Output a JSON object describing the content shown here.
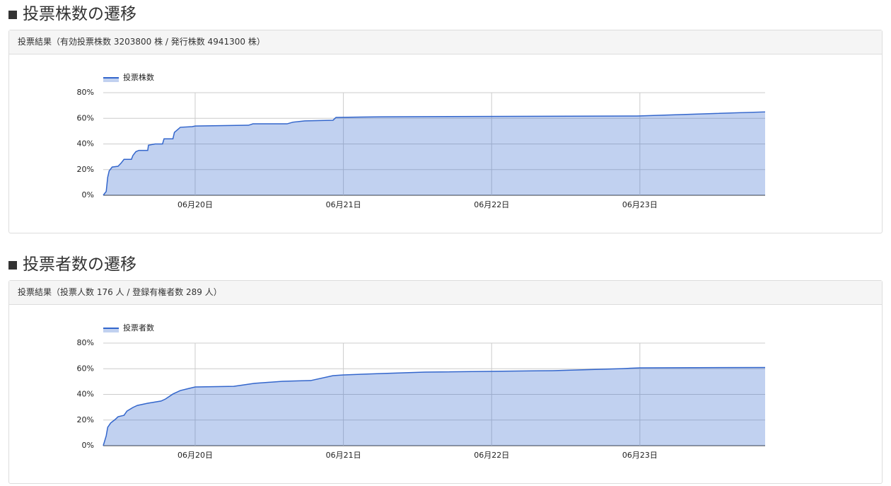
{
  "chart_data": [
    {
      "type": "area",
      "title": "投票株数の遷移",
      "subtitle": "投票結果（有効投票株数 3203800 株 / 発行株数 4941300 株）",
      "x": [
        19.38,
        19.4,
        19.41,
        19.42,
        19.44,
        19.48,
        19.5,
        19.52,
        19.57,
        19.58,
        19.6,
        19.62,
        19.68,
        19.685,
        19.73,
        19.78,
        19.79,
        19.85,
        19.86,
        19.88,
        19.9,
        19.98,
        20.0,
        20.36,
        20.39,
        20.62,
        20.66,
        20.74,
        20.93,
        20.95,
        21.26,
        22.98,
        23.845
      ],
      "series": [
        {
          "name": "投票株数",
          "color": "#3366cc",
          "values": [
            0,
            3,
            14,
            19,
            22,
            22.6,
            25,
            28,
            28,
            31,
            34,
            35,
            35,
            39,
            40,
            40,
            44,
            44,
            49,
            51,
            53,
            53.5,
            54,
            54.6,
            55.7,
            55.7,
            57,
            58,
            58.5,
            60.7,
            61.2,
            61.8,
            65
          ]
        }
      ],
      "xlim": [
        19.38,
        23.845
      ],
      "xticks": [
        {
          "value": 20,
          "label": "06月20日"
        },
        {
          "value": 21,
          "label": "06月21日"
        },
        {
          "value": 22,
          "label": "06月22日"
        },
        {
          "value": 23,
          "label": "06月23日"
        }
      ],
      "ylim": [
        0,
        80
      ],
      "yticks": [
        {
          "value": 0,
          "label": "0%"
        },
        {
          "value": 20,
          "label": "20%"
        },
        {
          "value": 40,
          "label": "40%"
        },
        {
          "value": 60,
          "label": "60%"
        },
        {
          "value": 80,
          "label": "80%"
        }
      ],
      "grid": true,
      "legend": "top-left"
    },
    {
      "type": "area",
      "title": "投票者数の遷移",
      "subtitle": "投票結果（投票人数 176 人 / 登録有権者数 289 人）",
      "x": [
        19.38,
        19.4,
        19.41,
        19.43,
        19.46,
        19.48,
        19.52,
        19.54,
        19.58,
        19.61,
        19.68,
        19.77,
        19.8,
        19.85,
        19.9,
        19.96,
        20.0,
        20.26,
        20.4,
        20.59,
        20.78,
        20.93,
        21.0,
        21.26,
        21.55,
        22.41,
        22.88,
        23.0,
        23.845
      ],
      "series": [
        {
          "name": "投票者数",
          "color": "#3366cc",
          "values": [
            0,
            7.7,
            14.3,
            17.7,
            20.4,
            22.6,
            23.7,
            27,
            29.8,
            31.4,
            33.1,
            34.8,
            36.4,
            40.3,
            43,
            44.7,
            45.8,
            46.3,
            48.6,
            50.2,
            50.8,
            54.6,
            55.2,
            56.3,
            57.4,
            58.5,
            60.1,
            60.7,
            61
          ]
        }
      ],
      "xlim": [
        19.38,
        23.845
      ],
      "xticks": [
        {
          "value": 20,
          "label": "06月20日"
        },
        {
          "value": 21,
          "label": "06月21日"
        },
        {
          "value": 22,
          "label": "06月22日"
        },
        {
          "value": 23,
          "label": "06月23日"
        }
      ],
      "ylim": [
        0,
        80
      ],
      "yticks": [
        {
          "value": 0,
          "label": "0%"
        },
        {
          "value": 20,
          "label": "20%"
        },
        {
          "value": 40,
          "label": "40%"
        },
        {
          "value": 60,
          "label": "60%"
        },
        {
          "value": 80,
          "label": "80%"
        }
      ],
      "grid": true,
      "legend": "top-left"
    }
  ]
}
